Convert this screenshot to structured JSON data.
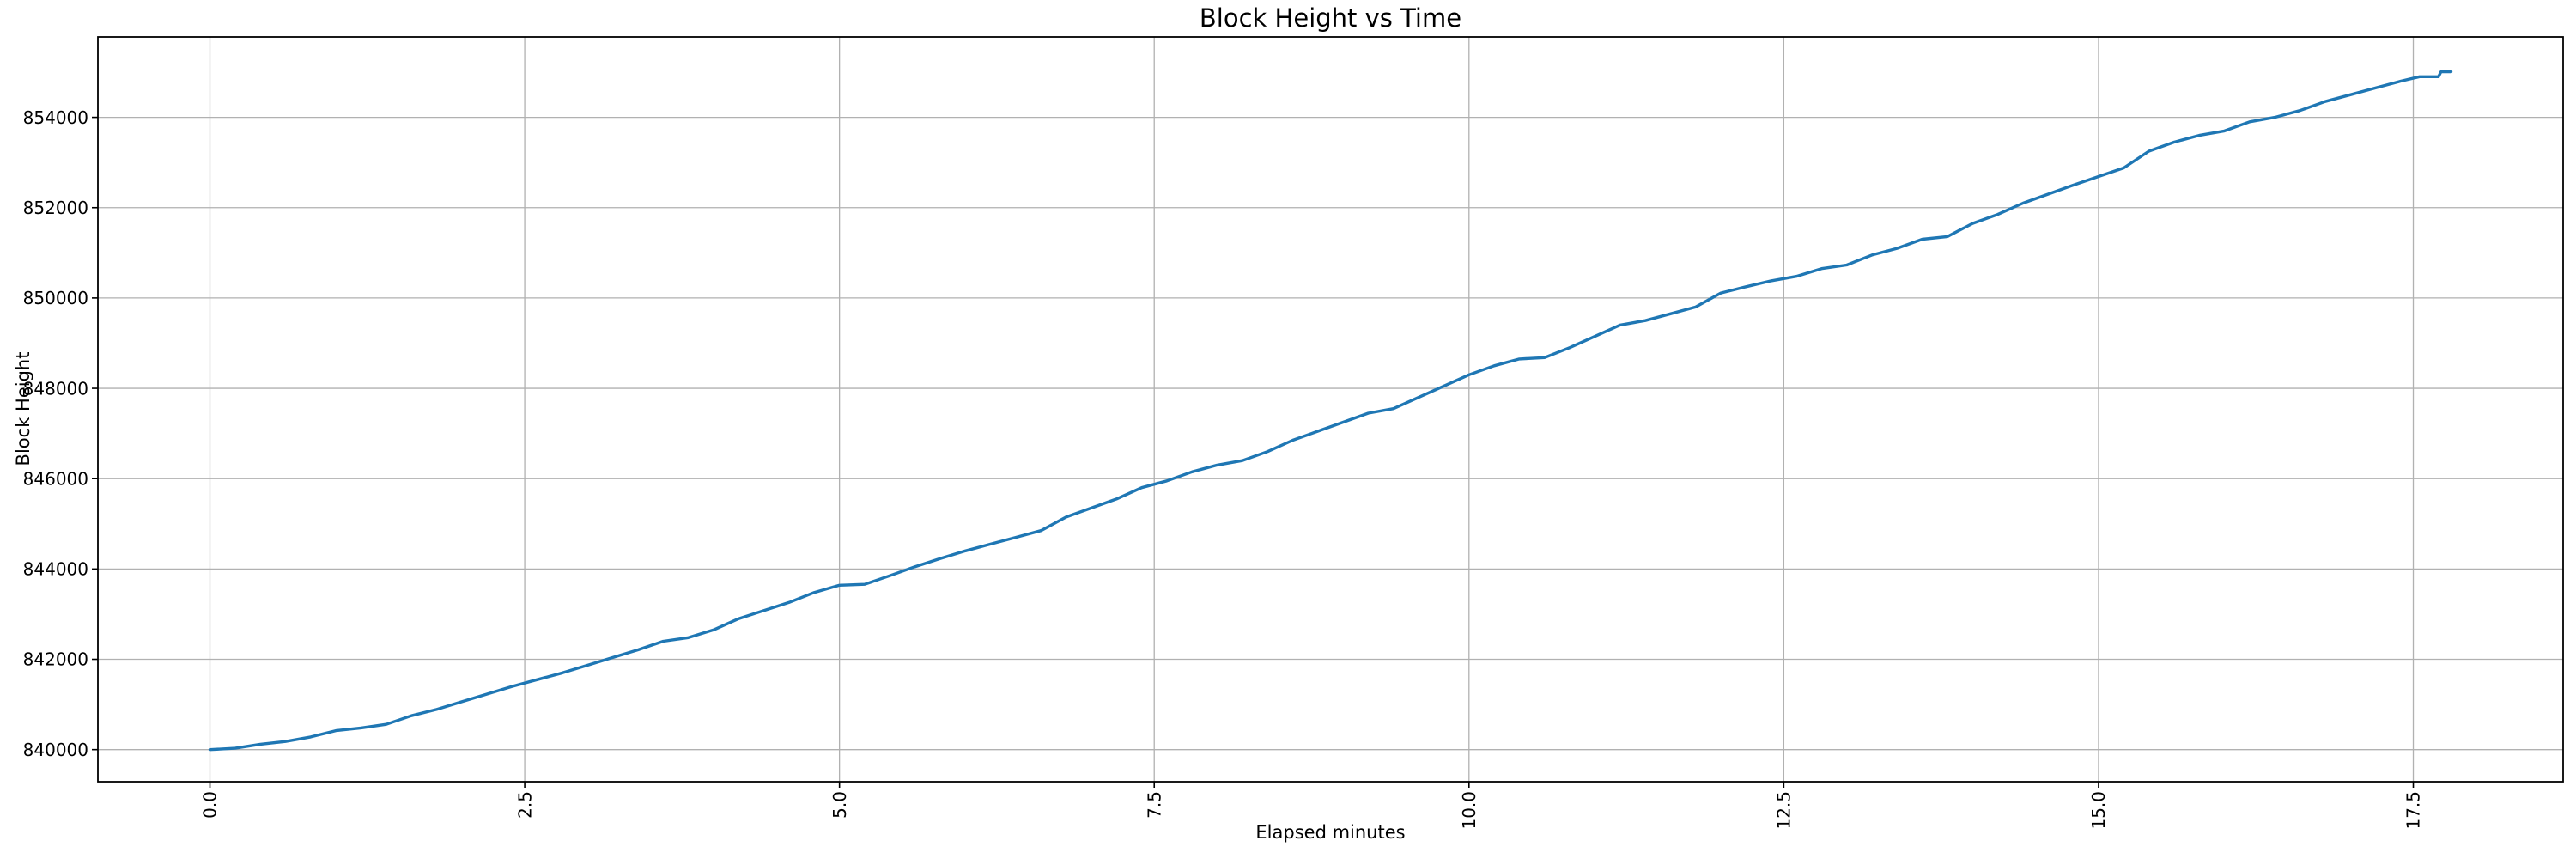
{
  "chart_data": {
    "type": "line",
    "title": "Block Height vs Time",
    "xlabel": "Elapsed minutes",
    "ylabel": "Block Height",
    "grid": true,
    "legend": "none",
    "xlim": [
      -0.89,
      18.69
    ],
    "ylim": [
      839290,
      855780
    ],
    "x_ticks": {
      "values": [
        0.0,
        2.5,
        5.0,
        7.5,
        10.0,
        12.5,
        15.0,
        17.5
      ],
      "labels": [
        "0.0",
        "2.5",
        "5.0",
        "7.5",
        "10.0",
        "12.5",
        "15.0",
        "17.5"
      ],
      "rotation": -90
    },
    "y_ticks": {
      "values": [
        840000,
        842000,
        844000,
        846000,
        848000,
        850000,
        852000,
        854000
      ],
      "labels": [
        "840000",
        "842000",
        "844000",
        "846000",
        "848000",
        "850000",
        "852000",
        "854000"
      ]
    },
    "colors": {
      "line": "#1f77b4",
      "grid": "#b1b1b1",
      "spine": "#000000",
      "tick": "#000000",
      "text": "#000000",
      "background": "#ffffff"
    },
    "series": [
      {
        "name": "block_height",
        "points": [
          [
            0.0,
            840000
          ],
          [
            0.2,
            840030
          ],
          [
            0.4,
            840120
          ],
          [
            0.6,
            840180
          ],
          [
            0.8,
            840280
          ],
          [
            1.0,
            840420
          ],
          [
            1.2,
            840480
          ],
          [
            1.4,
            840560
          ],
          [
            1.6,
            840750
          ],
          [
            1.8,
            840890
          ],
          [
            2.0,
            841060
          ],
          [
            2.2,
            841230
          ],
          [
            2.4,
            841400
          ],
          [
            2.6,
            841550
          ],
          [
            2.8,
            841700
          ],
          [
            3.0,
            841870
          ],
          [
            3.2,
            842040
          ],
          [
            3.4,
            842210
          ],
          [
            3.6,
            842400
          ],
          [
            3.8,
            842480
          ],
          [
            4.0,
            842650
          ],
          [
            4.2,
            842900
          ],
          [
            4.4,
            843080
          ],
          [
            4.6,
            843260
          ],
          [
            4.8,
            843480
          ],
          [
            5.0,
            843640
          ],
          [
            5.2,
            843660
          ],
          [
            5.4,
            843850
          ],
          [
            5.6,
            844050
          ],
          [
            5.8,
            844230
          ],
          [
            6.0,
            844400
          ],
          [
            6.2,
            844550
          ],
          [
            6.4,
            844700
          ],
          [
            6.6,
            844850
          ],
          [
            6.8,
            845150
          ],
          [
            7.0,
            845350
          ],
          [
            7.2,
            845550
          ],
          [
            7.4,
            845800
          ],
          [
            7.6,
            845950
          ],
          [
            7.8,
            846150
          ],
          [
            8.0,
            846300
          ],
          [
            8.2,
            846400
          ],
          [
            8.4,
            846600
          ],
          [
            8.6,
            846850
          ],
          [
            8.8,
            847050
          ],
          [
            9.0,
            847250
          ],
          [
            9.2,
            847450
          ],
          [
            9.4,
            847550
          ],
          [
            9.6,
            847800
          ],
          [
            9.8,
            848050
          ],
          [
            10.0,
            848300
          ],
          [
            10.2,
            848500
          ],
          [
            10.4,
            848650
          ],
          [
            10.6,
            848680
          ],
          [
            10.8,
            848900
          ],
          [
            11.0,
            849150
          ],
          [
            11.2,
            849400
          ],
          [
            11.4,
            849500
          ],
          [
            11.6,
            849650
          ],
          [
            11.8,
            849800
          ],
          [
            12.0,
            850110
          ],
          [
            12.2,
            850250
          ],
          [
            12.4,
            850380
          ],
          [
            12.6,
            850480
          ],
          [
            12.8,
            850650
          ],
          [
            13.0,
            850730
          ],
          [
            13.2,
            850950
          ],
          [
            13.4,
            851100
          ],
          [
            13.6,
            851300
          ],
          [
            13.8,
            851360
          ],
          [
            14.0,
            851650
          ],
          [
            14.2,
            851850
          ],
          [
            14.4,
            852100
          ],
          [
            14.6,
            852300
          ],
          [
            14.8,
            852500
          ],
          [
            15.0,
            852690
          ],
          [
            15.2,
            852880
          ],
          [
            15.4,
            853250
          ],
          [
            15.6,
            853450
          ],
          [
            15.8,
            853600
          ],
          [
            16.0,
            853700
          ],
          [
            16.2,
            853900
          ],
          [
            16.4,
            854000
          ],
          [
            16.6,
            854150
          ],
          [
            16.8,
            854350
          ],
          [
            17.0,
            854500
          ],
          [
            17.2,
            854650
          ],
          [
            17.4,
            854800
          ],
          [
            17.55,
            854900
          ],
          [
            17.7,
            854900
          ],
          [
            17.72,
            855010
          ],
          [
            17.8,
            855010
          ]
        ]
      }
    ]
  }
}
